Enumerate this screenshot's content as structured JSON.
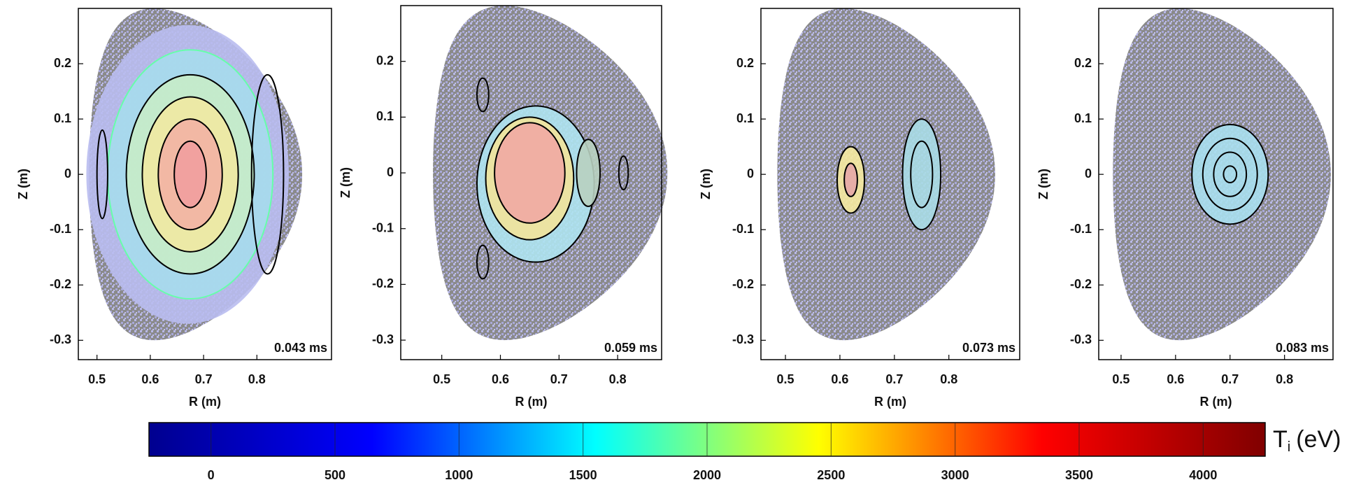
{
  "chart_data": [
    {
      "type": "contour",
      "annotation": "0.043 ms",
      "xlabel": "R (m)",
      "ylabel": "Z (m)",
      "xlim": [
        0.465,
        0.94
      ],
      "ylim": [
        -0.335,
        0.3
      ],
      "xticks": [
        0.5,
        0.6,
        0.7,
        0.8
      ],
      "yticks": [
        0.2,
        0.1,
        0,
        -0.1,
        -0.2,
        -0.3
      ]
    },
    {
      "type": "contour",
      "annotation": "0.059 ms",
      "xlabel": "R (m)",
      "ylabel": "Z (m)",
      "xlim": [
        0.43,
        0.875
      ],
      "ylim": [
        -0.335,
        0.3
      ],
      "xticks": [
        0.5,
        0.6,
        0.7,
        0.8
      ],
      "yticks": [
        0.2,
        0.1,
        0,
        -0.1,
        -0.2,
        -0.3
      ]
    },
    {
      "type": "contour",
      "annotation": "0.073 ms",
      "xlabel": "R (m)",
      "ylabel": "Z (m)",
      "xlim": [
        0.455,
        0.93
      ],
      "ylim": [
        -0.335,
        0.3
      ],
      "xticks": [
        0.5,
        0.6,
        0.7,
        0.8
      ],
      "yticks": [
        0.2,
        0.1,
        0,
        -0.1,
        -0.2,
        -0.3
      ]
    },
    {
      "type": "contour",
      "annotation": "0.083 ms",
      "xlabel": "R (m)",
      "ylabel": "Z (m)",
      "xlim": [
        0.459,
        0.889
      ],
      "ylim": [
        -0.335,
        0.3
      ],
      "xticks": [
        0.5,
        0.6,
        0.7,
        0.8
      ],
      "yticks": [
        0.2,
        0.1,
        0,
        -0.1,
        -0.2,
        -0.3
      ]
    },
    {
      "type": "colorbar",
      "label_symbol": "T",
      "label_subscript": "i",
      "label_unit": "(eV)",
      "xlim": [
        -250,
        4250
      ],
      "xticks": [
        0,
        500,
        1000,
        1500,
        2000,
        2500,
        3000,
        3500,
        4000
      ],
      "colormap": [
        "#00008f",
        "#0000ff",
        "#00ffff",
        "#ffff00",
        "#ff0000",
        "#800000"
      ]
    }
  ]
}
